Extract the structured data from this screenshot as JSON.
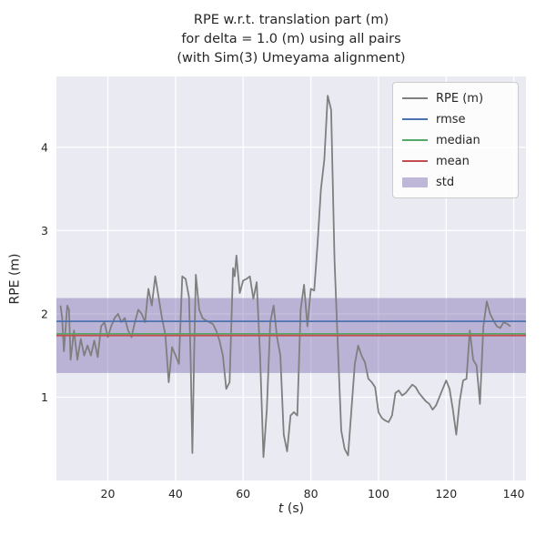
{
  "chart_data": {
    "type": "line",
    "title_lines": [
      "RPE w.r.t. translation part (m)",
      "for delta = 1.0 (m) using all pairs",
      "(with Sim(3) Umeyama alignment)"
    ],
    "xlabel": {
      "italic": "t",
      "rest": " (s)"
    },
    "ylabel": "RPE (m)",
    "xlim": [
      4.8,
      143.6
    ],
    "ylim": [
      0.0,
      4.85
    ],
    "xticks": [
      20,
      40,
      60,
      80,
      100,
      120,
      140
    ],
    "yticks": [
      1,
      2,
      3,
      4
    ],
    "grid": true,
    "legend_position": "upper right",
    "colors": {
      "axes_bg": "#EAEAF2",
      "grid": "#FFFFFF",
      "text": "#262626"
    },
    "series": [
      {
        "name": "RPE (m)",
        "color": "#7f7f7f",
        "points": [
          [
            6,
            2.1
          ],
          [
            6.5,
            1.95
          ],
          [
            7,
            1.55
          ],
          [
            8,
            2.1
          ],
          [
            8.5,
            2.05
          ],
          [
            9,
            1.45
          ],
          [
            10,
            1.8
          ],
          [
            11,
            1.45
          ],
          [
            12,
            1.7
          ],
          [
            13,
            1.5
          ],
          [
            14,
            1.62
          ],
          [
            15,
            1.5
          ],
          [
            16,
            1.68
          ],
          [
            17,
            1.48
          ],
          [
            18,
            1.85
          ],
          [
            19,
            1.9
          ],
          [
            20,
            1.72
          ],
          [
            21,
            1.85
          ],
          [
            22,
            1.95
          ],
          [
            23,
            2.0
          ],
          [
            24,
            1.9
          ],
          [
            25,
            1.95
          ],
          [
            26,
            1.8
          ],
          [
            27,
            1.72
          ],
          [
            28,
            1.9
          ],
          [
            29,
            2.05
          ],
          [
            30,
            2.0
          ],
          [
            31,
            1.9
          ],
          [
            32,
            2.3
          ],
          [
            33,
            2.1
          ],
          [
            34,
            2.45
          ],
          [
            35,
            2.2
          ],
          [
            36,
            1.95
          ],
          [
            37,
            1.75
          ],
          [
            38,
            1.18
          ],
          [
            39,
            1.6
          ],
          [
            40,
            1.5
          ],
          [
            41,
            1.4
          ],
          [
            42,
            2.45
          ],
          [
            43,
            2.42
          ],
          [
            44,
            2.2
          ],
          [
            44.5,
            1.4
          ],
          [
            45,
            0.33
          ],
          [
            45.5,
            1.5
          ],
          [
            46,
            2.47
          ],
          [
            47,
            2.05
          ],
          [
            48,
            1.95
          ],
          [
            49,
            1.92
          ],
          [
            50,
            1.9
          ],
          [
            51,
            1.88
          ],
          [
            52,
            1.8
          ],
          [
            53,
            1.68
          ],
          [
            54,
            1.5
          ],
          [
            55,
            1.1
          ],
          [
            56,
            1.18
          ],
          [
            57,
            2.55
          ],
          [
            57.5,
            2.45
          ],
          [
            58,
            2.7
          ],
          [
            59,
            2.25
          ],
          [
            60,
            2.4
          ],
          [
            61,
            2.42
          ],
          [
            62,
            2.45
          ],
          [
            63,
            2.18
          ],
          [
            64,
            2.38
          ],
          [
            65,
            1.5
          ],
          [
            66,
            0.28
          ],
          [
            67,
            0.85
          ],
          [
            68,
            1.9
          ],
          [
            69,
            2.1
          ],
          [
            70,
            1.72
          ],
          [
            71,
            1.5
          ],
          [
            72,
            0.55
          ],
          [
            73,
            0.35
          ],
          [
            74,
            0.78
          ],
          [
            75,
            0.82
          ],
          [
            76,
            0.78
          ],
          [
            77,
            2.05
          ],
          [
            78,
            2.35
          ],
          [
            79,
            1.85
          ],
          [
            80,
            2.3
          ],
          [
            81,
            2.28
          ],
          [
            82,
            2.85
          ],
          [
            83,
            3.5
          ],
          [
            84,
            3.85
          ],
          [
            85,
            4.62
          ],
          [
            86,
            4.45
          ],
          [
            87,
            2.65
          ],
          [
            88,
            1.6
          ],
          [
            89,
            0.6
          ],
          [
            90,
            0.38
          ],
          [
            91,
            0.3
          ],
          [
            92,
            0.85
          ],
          [
            93,
            1.4
          ],
          [
            94,
            1.62
          ],
          [
            95,
            1.5
          ],
          [
            96,
            1.42
          ],
          [
            97,
            1.22
          ],
          [
            98,
            1.18
          ],
          [
            99,
            1.12
          ],
          [
            100,
            0.82
          ],
          [
            101,
            0.75
          ],
          [
            102,
            0.72
          ],
          [
            103,
            0.7
          ],
          [
            104,
            0.78
          ],
          [
            105,
            1.05
          ],
          [
            106,
            1.08
          ],
          [
            107,
            1.02
          ],
          [
            108,
            1.05
          ],
          [
            109,
            1.1
          ],
          [
            110,
            1.15
          ],
          [
            111,
            1.12
          ],
          [
            112,
            1.05
          ],
          [
            113,
            1.0
          ],
          [
            114,
            0.95
          ],
          [
            115,
            0.92
          ],
          [
            116,
            0.85
          ],
          [
            117,
            0.9
          ],
          [
            118,
            1.0
          ],
          [
            119,
            1.1
          ],
          [
            120,
            1.2
          ],
          [
            121,
            1.1
          ],
          [
            122,
            0.85
          ],
          [
            123,
            0.55
          ],
          [
            124,
            0.95
          ],
          [
            125,
            1.2
          ],
          [
            126,
            1.22
          ],
          [
            127,
            1.8
          ],
          [
            128,
            1.45
          ],
          [
            129,
            1.38
          ],
          [
            130,
            0.92
          ],
          [
            131,
            1.85
          ],
          [
            132,
            2.15
          ],
          [
            133,
            2.0
          ],
          [
            134,
            1.92
          ],
          [
            135,
            1.85
          ],
          [
            136,
            1.83
          ],
          [
            137,
            1.9
          ],
          [
            138,
            1.88
          ],
          [
            139,
            1.85
          ]
        ]
      }
    ],
    "stats": {
      "rmse": {
        "label": "rmse",
        "value": 1.91,
        "color": "#4C72B0"
      },
      "median": {
        "label": "median",
        "value": 1.76,
        "color": "#55A868"
      },
      "mean": {
        "label": "mean",
        "value": 1.74,
        "color": "#C44E52"
      },
      "std": {
        "label": "std",
        "value": 0.45,
        "band": [
          1.29,
          2.19
        ],
        "color": "#8172B2"
      }
    },
    "legend": [
      {
        "label": "RPE (m)",
        "type": "line",
        "color": "#7f7f7f"
      },
      {
        "label": "rmse",
        "type": "line",
        "color": "#4C72B0"
      },
      {
        "label": "median",
        "type": "line",
        "color": "#55A868"
      },
      {
        "label": "mean",
        "type": "line",
        "color": "#C44E52"
      },
      {
        "label": "std",
        "type": "patch",
        "color": "#8172B2"
      }
    ]
  }
}
